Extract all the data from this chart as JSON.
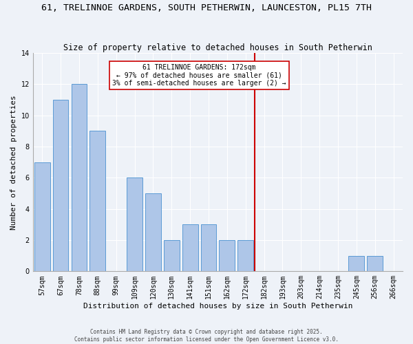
{
  "title": "61, TRELINNOE GARDENS, SOUTH PETHERWIN, LAUNCESTON, PL15 7TH",
  "subtitle": "Size of property relative to detached houses in South Petherwin",
  "xlabel": "Distribution of detached houses by size in South Petherwin",
  "ylabel": "Number of detached properties",
  "categories": [
    "57sqm",
    "67sqm",
    "78sqm",
    "88sqm",
    "99sqm",
    "109sqm",
    "120sqm",
    "130sqm",
    "141sqm",
    "151sqm",
    "162sqm",
    "172sqm",
    "182sqm",
    "193sqm",
    "203sqm",
    "214sqm",
    "235sqm",
    "245sqm",
    "256sqm",
    "266sqm"
  ],
  "values": [
    7,
    11,
    12,
    9,
    0,
    6,
    5,
    2,
    3,
    3,
    2,
    2,
    0,
    0,
    0,
    0,
    0,
    1,
    1,
    0
  ],
  "bar_color": "#aec6e8",
  "bar_edge_color": "#5b9bd5",
  "vline_x": 11.5,
  "vline_color": "#cc0000",
  "annotation_text": "61 TRELINNOE GARDENS: 172sqm\n← 97% of detached houses are smaller (61)\n3% of semi-detached houses are larger (2) →",
  "annotation_box_color": "#ffffff",
  "annotation_box_edge": "#cc0000",
  "ylim": [
    0,
    14
  ],
  "yticks": [
    0,
    2,
    4,
    6,
    8,
    10,
    12,
    14
  ],
  "title_fontsize": 9.5,
  "subtitle_fontsize": 8.5,
  "xlabel_fontsize": 8,
  "ylabel_fontsize": 8,
  "tick_fontsize": 7,
  "ann_fontsize": 7,
  "footer_fontsize": 5.5,
  "footer_text": "Contains HM Land Registry data © Crown copyright and database right 2025.\nContains public sector information licensed under the Open Government Licence v3.0.",
  "bg_color": "#eef2f8",
  "grid_color": "#ffffff"
}
